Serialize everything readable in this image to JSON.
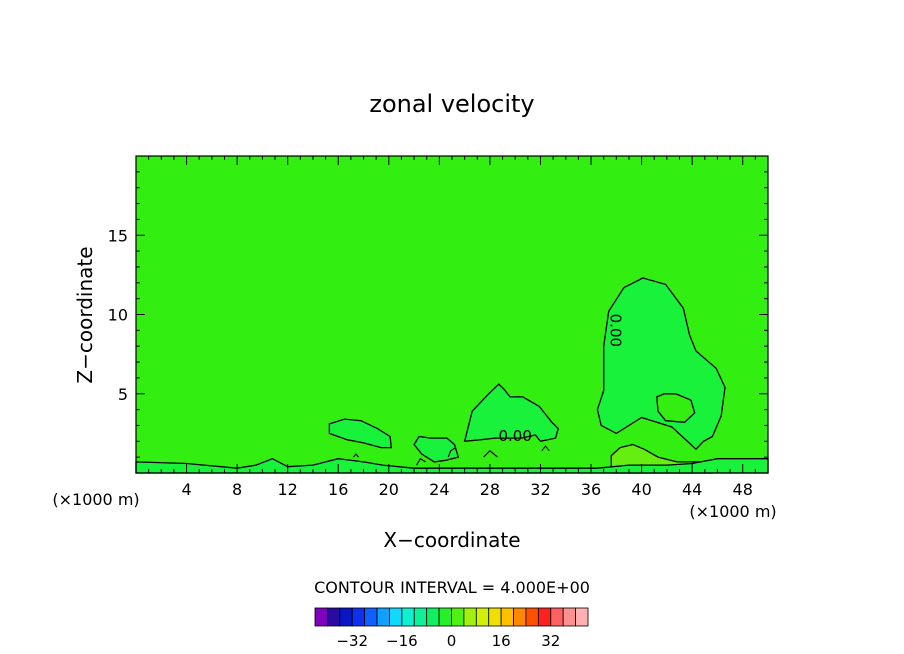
{
  "chart_data": {
    "type": "contour",
    "title": "zonal velocity",
    "xlabel": "X−coordinate",
    "ylabel": "Z−coordinate",
    "x_unit_left": "(×1000 m)",
    "x_unit_right": "(×1000 m)",
    "xlim": [
      0,
      50
    ],
    "ylim": [
      0,
      20
    ],
    "x_ticks": [
      4,
      8,
      12,
      16,
      20,
      24,
      28,
      32,
      36,
      40,
      44,
      48
    ],
    "x_tick_labels": [
      "4",
      "8",
      "12",
      "16",
      "20",
      "24",
      "28",
      "32",
      "36",
      "40",
      "44",
      "48"
    ],
    "y_ticks": [
      5,
      10,
      15
    ],
    "y_tick_labels": [
      "5",
      "10",
      "15"
    ],
    "background_color": "#33ee11",
    "contour_labels": [
      {
        "text": "0.00",
        "x": 30.0,
        "y": 2.3
      },
      {
        "text": "0.00",
        "x": 37.9,
        "y": 9.0,
        "rotation": 90
      }
    ],
    "regions": [
      {
        "name": "negative-cell-x40",
        "level": -4,
        "color": "#18f23a",
        "outline": [
          [
            37.0,
            5.2
          ],
          [
            37.0,
            8.0
          ],
          [
            37.4,
            10.2
          ],
          [
            38.6,
            11.7
          ],
          [
            40.1,
            12.3
          ],
          [
            41.9,
            11.9
          ],
          [
            43.3,
            10.4
          ],
          [
            43.8,
            8.7
          ],
          [
            44.3,
            7.7
          ],
          [
            45.9,
            6.6
          ],
          [
            46.6,
            5.4
          ],
          [
            46.3,
            3.6
          ],
          [
            45.6,
            2.3
          ],
          [
            44.9,
            2.0
          ],
          [
            44.3,
            1.5
          ],
          [
            42.4,
            2.9
          ],
          [
            40.0,
            3.5
          ],
          [
            38.0,
            2.5
          ],
          [
            36.8,
            3.0
          ],
          [
            36.5,
            4.0
          ],
          [
            37.0,
            5.2
          ]
        ]
      },
      {
        "name": "inner-loop-x43",
        "level": 0,
        "color": "#33ee11",
        "outline": [
          [
            41.2,
            4.8
          ],
          [
            41.8,
            5.0
          ],
          [
            42.7,
            5.0
          ],
          [
            43.9,
            4.6
          ],
          [
            44.2,
            3.8
          ],
          [
            43.4,
            3.2
          ],
          [
            41.9,
            3.3
          ],
          [
            41.3,
            3.9
          ],
          [
            41.2,
            4.8
          ]
        ]
      },
      {
        "name": "negative-cell-x29",
        "level": -4,
        "color": "#18f23a",
        "outline": [
          [
            26.0,
            2.0
          ],
          [
            26.6,
            3.9
          ],
          [
            27.9,
            5.0
          ],
          [
            28.7,
            5.6
          ],
          [
            29.1,
            5.3
          ],
          [
            29.6,
            4.8
          ],
          [
            30.6,
            4.8
          ],
          [
            31.9,
            4.2
          ],
          [
            32.9,
            3.2
          ],
          [
            33.4,
            2.8
          ],
          [
            33.2,
            2.2
          ],
          [
            32.0,
            2.0
          ],
          [
            31.6,
            2.4
          ],
          [
            30.5,
            2.2
          ],
          [
            29.5,
            2.2
          ],
          [
            28.4,
            2.2
          ],
          [
            27.3,
            2.1
          ],
          [
            26.0,
            2.0
          ]
        ]
      },
      {
        "name": "negative-cell-x17",
        "level": -4,
        "color": "#18f23a",
        "outline": [
          [
            15.3,
            2.5
          ],
          [
            15.3,
            3.1
          ],
          [
            16.5,
            3.4
          ],
          [
            17.8,
            3.3
          ],
          [
            19.1,
            2.8
          ],
          [
            20.1,
            2.3
          ],
          [
            20.2,
            1.6
          ],
          [
            19.4,
            1.6
          ],
          [
            18.0,
            1.9
          ],
          [
            16.7,
            2.1
          ],
          [
            15.3,
            2.5
          ]
        ]
      },
      {
        "name": "negative-cell-x24",
        "level": -4,
        "color": "#18f23a",
        "outline": [
          [
            22.0,
            1.8
          ],
          [
            22.4,
            2.3
          ],
          [
            23.3,
            2.2
          ],
          [
            24.6,
            2.2
          ],
          [
            25.2,
            1.8
          ],
          [
            25.5,
            1.0
          ],
          [
            24.5,
            0.8
          ],
          [
            23.6,
            0.7
          ],
          [
            22.6,
            1.2
          ],
          [
            22.0,
            1.8
          ]
        ]
      },
      {
        "name": "positive-cell-x41",
        "level": 4,
        "color": "#66ee11",
        "outline": [
          [
            37.6,
            0.0
          ],
          [
            37.6,
            1.1
          ],
          [
            38.3,
            1.6
          ],
          [
            39.3,
            1.8
          ],
          [
            40.2,
            1.5
          ],
          [
            41.3,
            1.0
          ],
          [
            42.8,
            0.7
          ],
          [
            44.7,
            0.7
          ],
          [
            45.6,
            0.3
          ],
          [
            45.6,
            0.0
          ],
          [
            37.6,
            0.0
          ]
        ]
      },
      {
        "name": "surface-layer",
        "level": -4,
        "color": "#18f23a",
        "outline": [
          [
            0.0,
            0.0
          ],
          [
            0.0,
            0.7
          ],
          [
            4.0,
            0.6
          ],
          [
            8.0,
            0.3
          ],
          [
            9.5,
            0.5
          ],
          [
            10.8,
            0.9
          ],
          [
            12.0,
            0.4
          ],
          [
            14.0,
            0.5
          ],
          [
            16.0,
            0.9
          ],
          [
            18.0,
            0.7
          ],
          [
            19.5,
            0.5
          ],
          [
            22.0,
            0.3
          ],
          [
            25.0,
            0.3
          ],
          [
            28.0,
            0.3
          ],
          [
            30.0,
            0.3
          ],
          [
            32.0,
            0.3
          ],
          [
            36.5,
            0.3
          ],
          [
            39.0,
            0.5
          ],
          [
            42.0,
            0.5
          ],
          [
            44.0,
            0.6
          ],
          [
            46.0,
            0.9
          ],
          [
            48.0,
            0.9
          ],
          [
            50.0,
            0.9
          ],
          [
            50.0,
            0.0
          ],
          [
            0.0,
            0.0
          ]
        ]
      }
    ],
    "contour_lines": [
      [
        [
          24.7,
          1.0
        ],
        [
          24.9,
          1.4
        ],
        [
          25.3,
          1.6
        ]
      ],
      [
        [
          22.2,
          0.5
        ],
        [
          22.5,
          0.9
        ],
        [
          22.9,
          0.7
        ]
      ],
      [
        [
          32.1,
          1.4
        ],
        [
          32.4,
          1.7
        ],
        [
          32.7,
          1.4
        ]
      ],
      [
        [
          17.2,
          1.0
        ],
        [
          17.4,
          1.2
        ],
        [
          17.6,
          1.0
        ]
      ],
      [
        [
          27.5,
          1.0
        ],
        [
          28.0,
          1.4
        ],
        [
          28.6,
          1.0
        ]
      ]
    ],
    "colorbar": {
      "label": "CONTOUR INTERVAL = 4.000E+00",
      "tick_labels": [
        "−32",
        "−16",
        "0",
        "16",
        "32"
      ],
      "colors": [
        "#8000c0",
        "#2a0aa0",
        "#0818c8",
        "#1030f0",
        "#1060ff",
        "#10a0ff",
        "#10d8ff",
        "#10f0d0",
        "#10f09a",
        "#10f060",
        "#28f028",
        "#50f010",
        "#a0f010",
        "#d0f008",
        "#f0e000",
        "#ffc000",
        "#ff8800",
        "#ff5000",
        "#ff2020",
        "#ff6060",
        "#ff9090",
        "#ffb0b0"
      ]
    }
  }
}
